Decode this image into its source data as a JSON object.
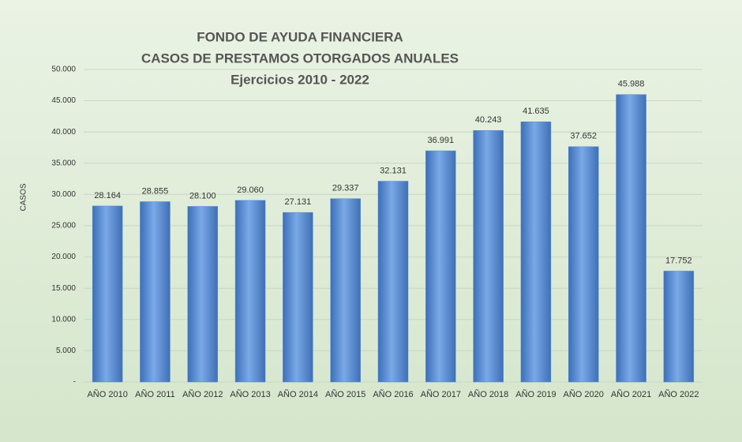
{
  "chart_data": {
    "type": "bar",
    "title": [
      "FONDO DE AYUDA FINANCIERA",
      "CASOS DE PRESTAMOS  OTORGADOS ANUALES",
      "Ejercicios  2010 - 2022"
    ],
    "y_label": "CASOS",
    "categories": [
      "AÑO 2010",
      "AÑO 2011",
      "AÑO 2012",
      "AÑO 2013",
      "AÑO 2014",
      "AÑO 2015",
      "AÑO 2016",
      "AÑO 2017",
      "AÑO 2018",
      "AÑO 2019",
      "AÑO 2020",
      "AÑO 2021",
      "AÑO 2022"
    ],
    "values": [
      28164,
      28855,
      28100,
      29060,
      27131,
      29337,
      32131,
      36991,
      40243,
      41635,
      37652,
      45988,
      17752
    ],
    "value_labels": [
      "28.164",
      "28.855",
      "28.100",
      "29.060",
      "27.131",
      "29.337",
      "32.131",
      "36.991",
      "40.243",
      "41.635",
      "37.652",
      "45.988",
      "17.752"
    ],
    "color": "#5b8fd6",
    "ylim": [
      0,
      50000
    ],
    "yticks": [
      {
        "value": 0,
        "label": "-"
      },
      {
        "value": 5000,
        "label": "5.000"
      },
      {
        "value": 10000,
        "label": "10.000"
      },
      {
        "value": 15000,
        "label": "15.000"
      },
      {
        "value": 20000,
        "label": "20.000"
      },
      {
        "value": 25000,
        "label": "25.000"
      },
      {
        "value": 30000,
        "label": "30.000"
      },
      {
        "value": 35000,
        "label": "35.000"
      },
      {
        "value": 40000,
        "label": "40.000"
      },
      {
        "value": 45000,
        "label": "45.000"
      },
      {
        "value": 50000,
        "label": "50.000"
      }
    ],
    "grid": true
  }
}
